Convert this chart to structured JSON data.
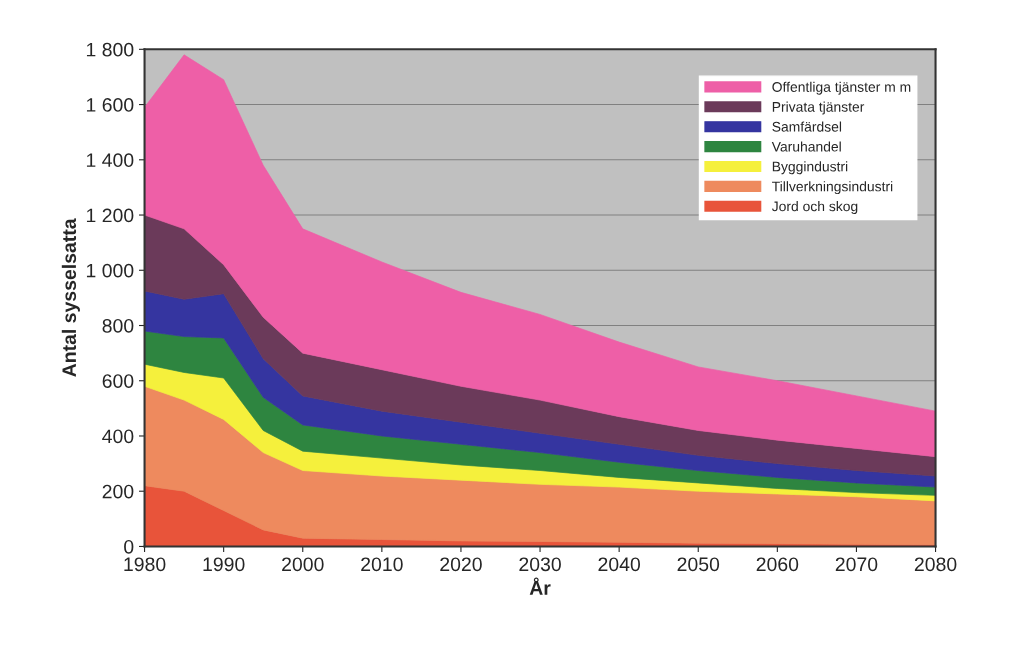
{
  "chart_data": {
    "type": "area",
    "stacked": true,
    "xlabel": "År",
    "ylabel": "Antal sysselsatta",
    "x": [
      1980,
      1985,
      1990,
      1995,
      2000,
      2010,
      2020,
      2030,
      2040,
      2050,
      2060,
      2070,
      2080
    ],
    "series": [
      {
        "name": "Jord och skog",
        "color": "#e8543a",
        "values": [
          220,
          200,
          130,
          60,
          30,
          25,
          20,
          18,
          15,
          12,
          10,
          8,
          6
        ]
      },
      {
        "name": "Tillverkningsindustri",
        "color": "#ee8a5e",
        "values": [
          360,
          330,
          330,
          280,
          245,
          230,
          220,
          207,
          200,
          188,
          180,
          172,
          159
        ]
      },
      {
        "name": "Byggindustri",
        "color": "#f5f03c",
        "values": [
          80,
          100,
          150,
          80,
          70,
          65,
          55,
          50,
          35,
          30,
          20,
          15,
          20
        ]
      },
      {
        "name": "Varuhandel",
        "color": "#2e8540",
        "values": [
          120,
          130,
          145,
          120,
          95,
          80,
          75,
          65,
          55,
          45,
          40,
          35,
          30
        ]
      },
      {
        "name": "Samfärdsel",
        "color": "#3535a0",
        "values": [
          145,
          135,
          160,
          140,
          105,
          90,
          80,
          70,
          65,
          55,
          50,
          45,
          40
        ]
      },
      {
        "name": "Privata tjänster",
        "color": "#6b3a5a",
        "values": [
          275,
          255,
          105,
          150,
          155,
          150,
          130,
          120,
          100,
          90,
          85,
          80,
          70
        ]
      },
      {
        "name": "Offentliga tjänster m m",
        "color": "#ee5fa7",
        "values": [
          390,
          630,
          670,
          550,
          450,
          390,
          340,
          310,
          270,
          230,
          215,
          190,
          165
        ]
      }
    ],
    "xlim": [
      1980,
      2080
    ],
    "xticks": [
      1980,
      1990,
      2000,
      2010,
      2020,
      2030,
      2040,
      2050,
      2060,
      2070,
      2080
    ],
    "ylim": [
      0,
      1800
    ],
    "yticks": [
      0,
      200,
      400,
      600,
      800,
      {
        "value": 1000,
        "label": "1 000"
      },
      {
        "value": 1200,
        "label": "1 200"
      },
      {
        "value": 1400,
        "label": "1 400"
      },
      {
        "value": 1600,
        "label": "1 600"
      },
      {
        "value": 1800,
        "label": "1 800"
      }
    ],
    "grid": "y",
    "legend": "top right"
  }
}
